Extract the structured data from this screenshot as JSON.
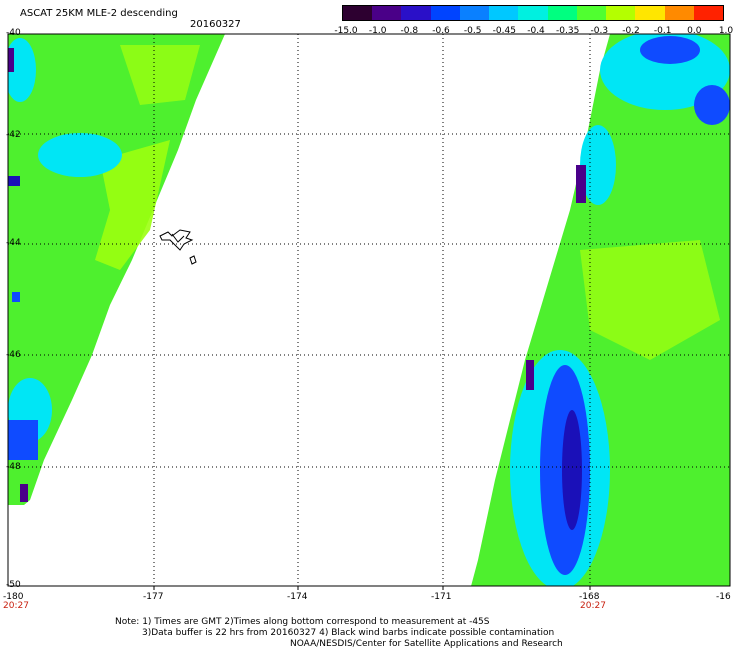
{
  "header": {
    "title": "ASCAT 25KM MLE-2 descending",
    "date": "20160327"
  },
  "colorbar": {
    "labels": [
      "-15.0",
      "-1.0",
      "-0.8",
      "-0.6",
      "-0.5",
      "-0.45",
      "-0.4",
      "-0.35",
      "-0.3",
      "-0.2",
      "-0.1",
      "0.0",
      "1.0"
    ],
    "colors": [
      "#2d0030",
      "#4a0088",
      "#2a10c8",
      "#0044ff",
      "#0a80ff",
      "#00c8ff",
      "#00f0e0",
      "#00ff80",
      "#50ff30",
      "#b4ff00",
      "#ffe600",
      "#ff8a00",
      "#ff2200"
    ]
  },
  "map": {
    "lon_labels": [
      "-180",
      "-177",
      "-174",
      "-171",
      "-168",
      "-16"
    ],
    "lat_labels": [
      "-40",
      "-42",
      "-44",
      "-46",
      "-48",
      "-50"
    ],
    "time_labels": [
      "20:27",
      "20:27"
    ],
    "colors": {
      "green": "#4ef02e",
      "yellow_green": "#9cff10",
      "cyan": "#00e6f5",
      "blue": "#0f4bff",
      "dark_blue": "#1a10b8",
      "purple": "#4a008a",
      "grid": "#000000",
      "time_label": "#c8200f"
    }
  },
  "notes": [
    "Note: 1) Times are GMT 2)Times along bottom correspond to measurement at -45S",
    "3)Data buffer is 22 hrs from 20160327 4) Black wind barbs indicate possible contamination",
    "NOAA/NESDIS/Center for Satellite Applications and Research"
  ]
}
